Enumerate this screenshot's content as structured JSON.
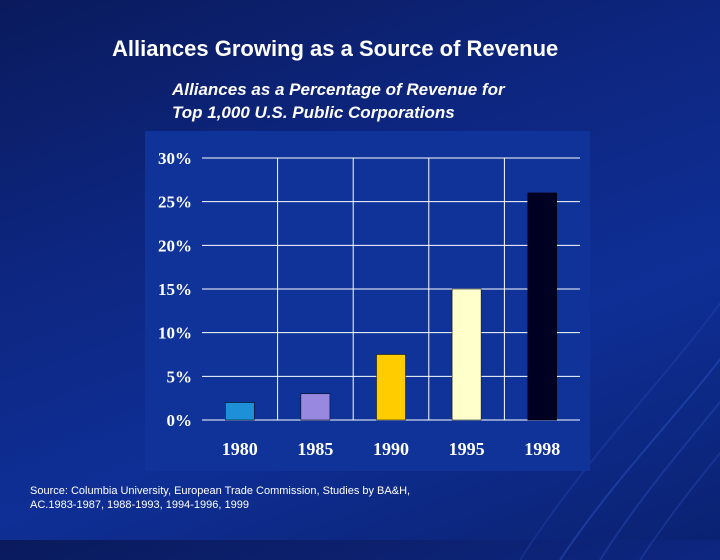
{
  "slide": {
    "title": "Alliances Growing as a Source of Revenue",
    "subtitle_line1": "Alliances as a Percentage of Revenue for",
    "subtitle_line2": "Top 1,000 U.S. Public Corporations",
    "source_line1": "Source: Columbia University, European Trade Commission, Studies by BA&H,",
    "source_line2": "AC.1983-1987, 1988-1993, 1994-1996, 1999"
  },
  "colors": {
    "plot_background": "#0f3399",
    "gridline": "#ffffff",
    "tick_label": "#ffffff",
    "bar_colors": [
      "#1e90d8",
      "#9988e0",
      "#ffcc00",
      "#ffffcc",
      "#000022"
    ]
  },
  "chart_data": {
    "type": "bar",
    "categories": [
      "1980",
      "1985",
      "1990",
      "1995",
      "1998"
    ],
    "values": [
      2,
      3,
      7.5,
      15,
      26
    ],
    "ylim": [
      0,
      30
    ],
    "yticks": [
      0,
      5,
      10,
      15,
      20,
      25,
      30
    ],
    "ytick_labels": [
      "0%",
      "5%",
      "10%",
      "15%",
      "20%",
      "25%",
      "30%"
    ],
    "grid": true,
    "title": "Alliances as a Percentage of Revenue for Top 1,000 U.S. Public Corporations",
    "xlabel": "",
    "ylabel": ""
  }
}
